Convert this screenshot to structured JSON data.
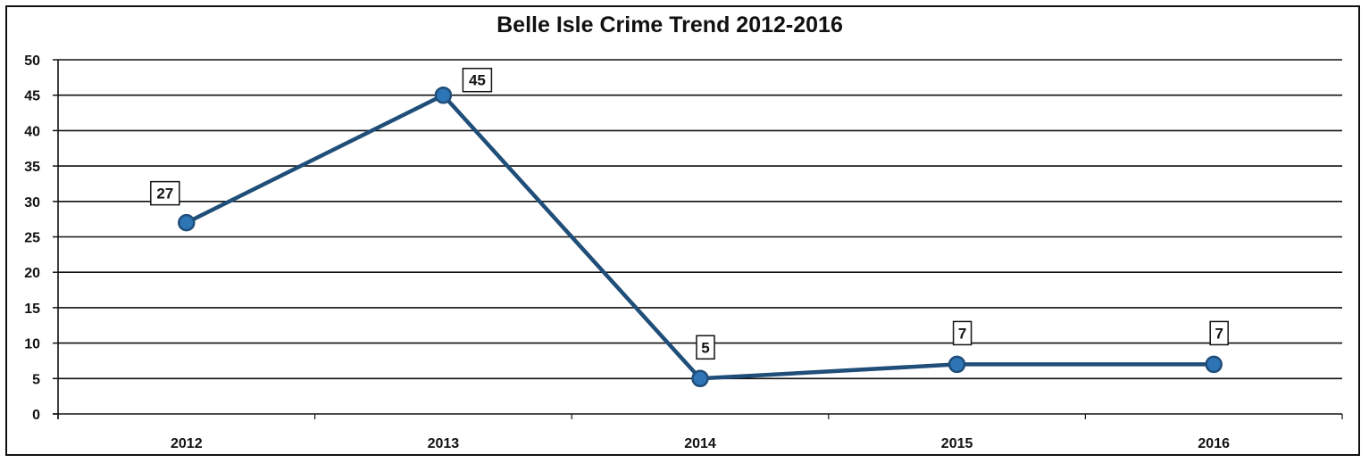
{
  "chart_data": {
    "type": "line",
    "title": "Belle Isle Crime Trend 2012-2016",
    "categories": [
      "2012",
      "2013",
      "2014",
      "2015",
      "2016"
    ],
    "values": [
      27,
      45,
      5,
      7,
      7
    ],
    "data_labels": [
      "27",
      "45",
      "5",
      "7",
      "7"
    ],
    "ylim": [
      0,
      50
    ],
    "yticks": [
      "0",
      "5",
      "10",
      "15",
      "20",
      "25",
      "30",
      "35",
      "40",
      "45",
      "50"
    ],
    "grid": true,
    "legend": "none",
    "colors": {
      "line": "#1f4e79",
      "marker": "#2e75b6",
      "grid": "#111111"
    }
  }
}
